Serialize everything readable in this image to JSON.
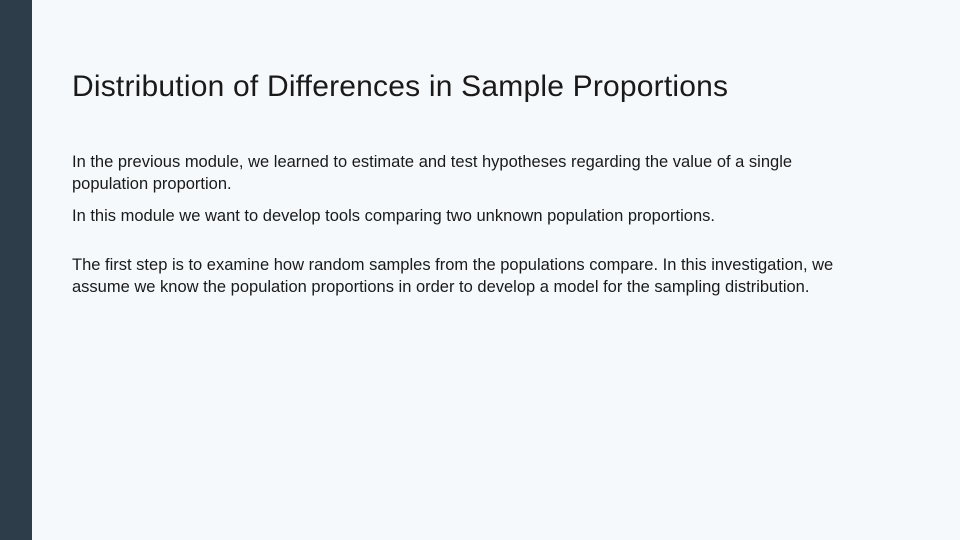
{
  "slide": {
    "title": "Distribution of Differences in Sample Proportions",
    "paragraphs": {
      "p1": "In the previous module, we learned to estimate and test hypotheses regarding the value of a single population proportion.",
      "p2": "In this module we want to develop tools comparing two unknown population proportions.",
      "p3": "The first step is to examine how random samples from the populations compare. In this investigation, we assume we know the population proportions in order to develop a model for the sampling distribution."
    }
  },
  "colors": {
    "sidebar": "#2e3d4a",
    "background": "#f5f9fc",
    "text": "#1a1a1a"
  }
}
